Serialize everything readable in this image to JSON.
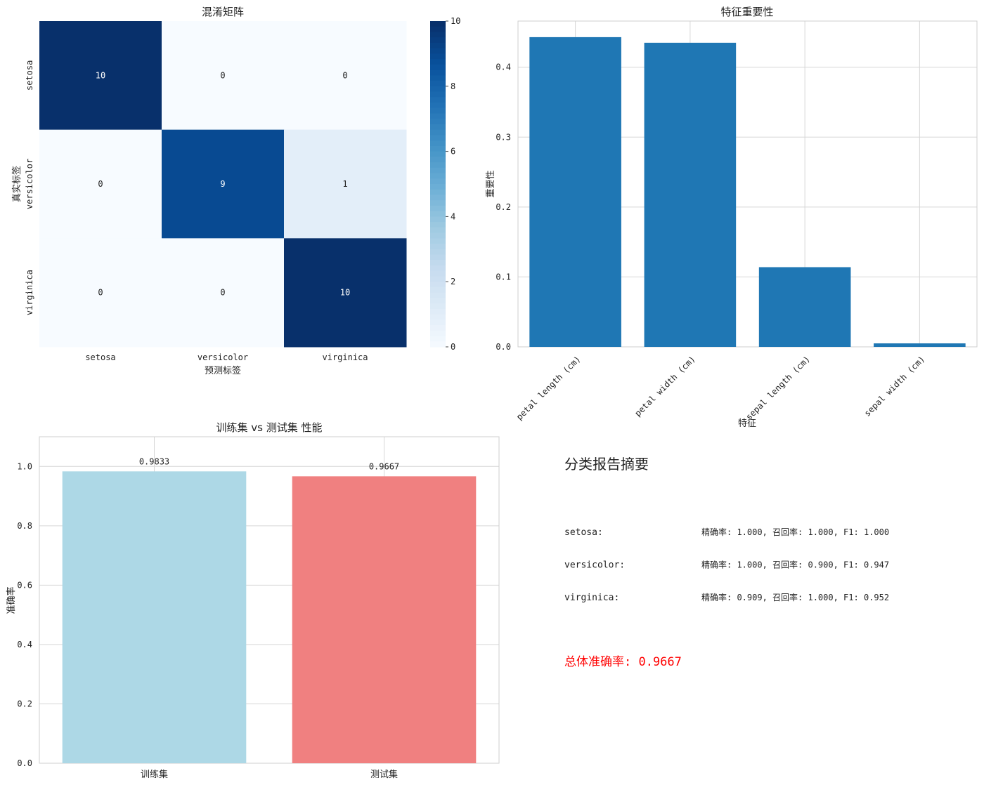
{
  "chart_data": [
    {
      "type": "heatmap",
      "title": "混淆矩阵",
      "xlabel": "预测标签",
      "ylabel": "真实标签",
      "x_categories": [
        "setosa",
        "versicolor",
        "virginica"
      ],
      "y_categories": [
        "setosa",
        "versicolor",
        "virginica"
      ],
      "values": [
        [
          10,
          0,
          0
        ],
        [
          0,
          9,
          1
        ],
        [
          0,
          0,
          10
        ]
      ],
      "colormap": "Blues",
      "colorbar": {
        "range": [
          0,
          10
        ],
        "ticks": [
          0,
          2,
          4,
          6,
          8,
          10
        ]
      }
    },
    {
      "type": "bar",
      "title": "特征重要性",
      "xlabel": "特征",
      "ylabel": "重要性",
      "categories": [
        "petal length (cm)",
        "petal width (cm)",
        "sepal length (cm)",
        "sepal width (cm)"
      ],
      "values": [
        0.443,
        0.435,
        0.114,
        0.005
      ],
      "ylim": [
        0,
        0.466
      ],
      "yticks": [
        "0.0",
        "0.1",
        "0.2",
        "0.3",
        "0.4"
      ],
      "grid": true,
      "color": "#1f77b4"
    },
    {
      "type": "bar",
      "title": "训练集 vs 测试集 性能",
      "xlabel": "",
      "ylabel": "准确率",
      "categories": [
        "训练集",
        "测试集"
      ],
      "values": [
        0.9833,
        0.9667
      ],
      "data_labels": [
        "0.9833",
        "0.9667"
      ],
      "colors": [
        "#add8e6",
        "#f08080"
      ],
      "ylim": [
        0,
        1.1
      ],
      "yticks": [
        "0.0",
        "0.2",
        "0.4",
        "0.6",
        "0.8",
        "1.0"
      ],
      "grid": true
    }
  ],
  "report": {
    "title": "分类报告摘要",
    "rows": [
      {
        "label": "setosa:",
        "metrics": "精确率: 1.000, 召回率: 1.000, F1: 1.000"
      },
      {
        "label": "versicolor:",
        "metrics": "精确率: 1.000, 召回率: 0.900, F1: 0.947"
      },
      {
        "label": "virginica:",
        "metrics": "精确率: 0.909, 召回率: 1.000, F1: 0.952"
      }
    ],
    "overall": "总体准确率: 0.9667",
    "overall_color": "#ff0000"
  }
}
